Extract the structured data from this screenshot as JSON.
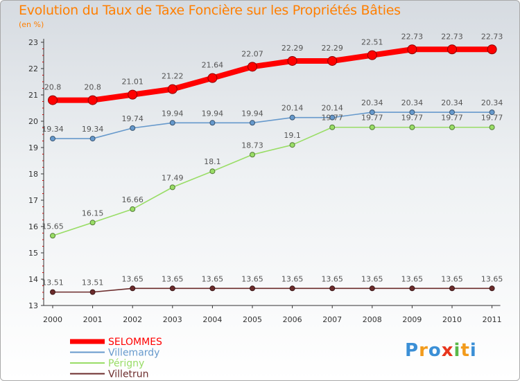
{
  "title": "Evolution du Taux de Taxe Foncière sur les Propriétés Bâties",
  "unit_label": "(en %)",
  "logo_text": "Proxiti",
  "chart_data": {
    "type": "line",
    "x": [
      "2000",
      "2001",
      "2002",
      "2003",
      "2004",
      "2005",
      "2006",
      "2007",
      "2008",
      "2009",
      "2010",
      "2011"
    ],
    "yticks": [
      "13",
      "14",
      "15",
      "16",
      "17",
      "18",
      "19",
      "20",
      "21",
      "22",
      "23"
    ],
    "ylim": [
      13,
      23
    ],
    "grid": false,
    "legend_position": "bottom-left",
    "series": [
      {
        "name": "SELOMMES",
        "color": "#ff0000",
        "width": "thick",
        "values": [
          20.8,
          20.8,
          21.01,
          21.22,
          21.64,
          22.07,
          22.29,
          22.29,
          22.51,
          22.73,
          22.73,
          22.73
        ],
        "labels": [
          "20.8",
          "20.8",
          "21.01",
          "21.22",
          "21.64",
          "22.07",
          "22.29",
          "22.29",
          "22.51",
          "22.73",
          "22.73",
          "22.73"
        ]
      },
      {
        "name": "Villemardy",
        "color": "#6699cc",
        "width": "thin",
        "values": [
          19.34,
          19.34,
          19.74,
          19.94,
          19.94,
          19.94,
          20.14,
          20.14,
          20.34,
          20.34,
          20.34,
          20.34
        ],
        "labels": [
          "19.34",
          "19.34",
          "19.74",
          "19.94",
          "19.94",
          "19.94",
          "20.14",
          "20.14",
          "20.34",
          "20.34",
          "20.34",
          "20.34"
        ]
      },
      {
        "name": "Périgny",
        "color": "#99dd66",
        "width": "thin",
        "values": [
          15.65,
          16.15,
          16.66,
          17.49,
          18.1,
          18.73,
          19.1,
          19.77,
          19.77,
          19.77,
          19.77,
          19.77
        ],
        "labels": [
          "15.65",
          "16.15",
          "16.66",
          "17.49",
          "18.1",
          "18.73",
          "19.1",
          "19.77",
          "19.77",
          "19.77",
          "19.77",
          "19.77"
        ]
      },
      {
        "name": "Villetrun",
        "color": "#6b2b2b",
        "width": "thin",
        "values": [
          13.51,
          13.51,
          13.65,
          13.65,
          13.65,
          13.65,
          13.65,
          13.65,
          13.65,
          13.65,
          13.65,
          13.65
        ],
        "labels": [
          "13.51",
          "13.51",
          "13.65",
          "13.65",
          "13.65",
          "13.65",
          "13.65",
          "13.65",
          "13.65",
          "13.65",
          "13.65",
          "13.65"
        ]
      }
    ]
  }
}
